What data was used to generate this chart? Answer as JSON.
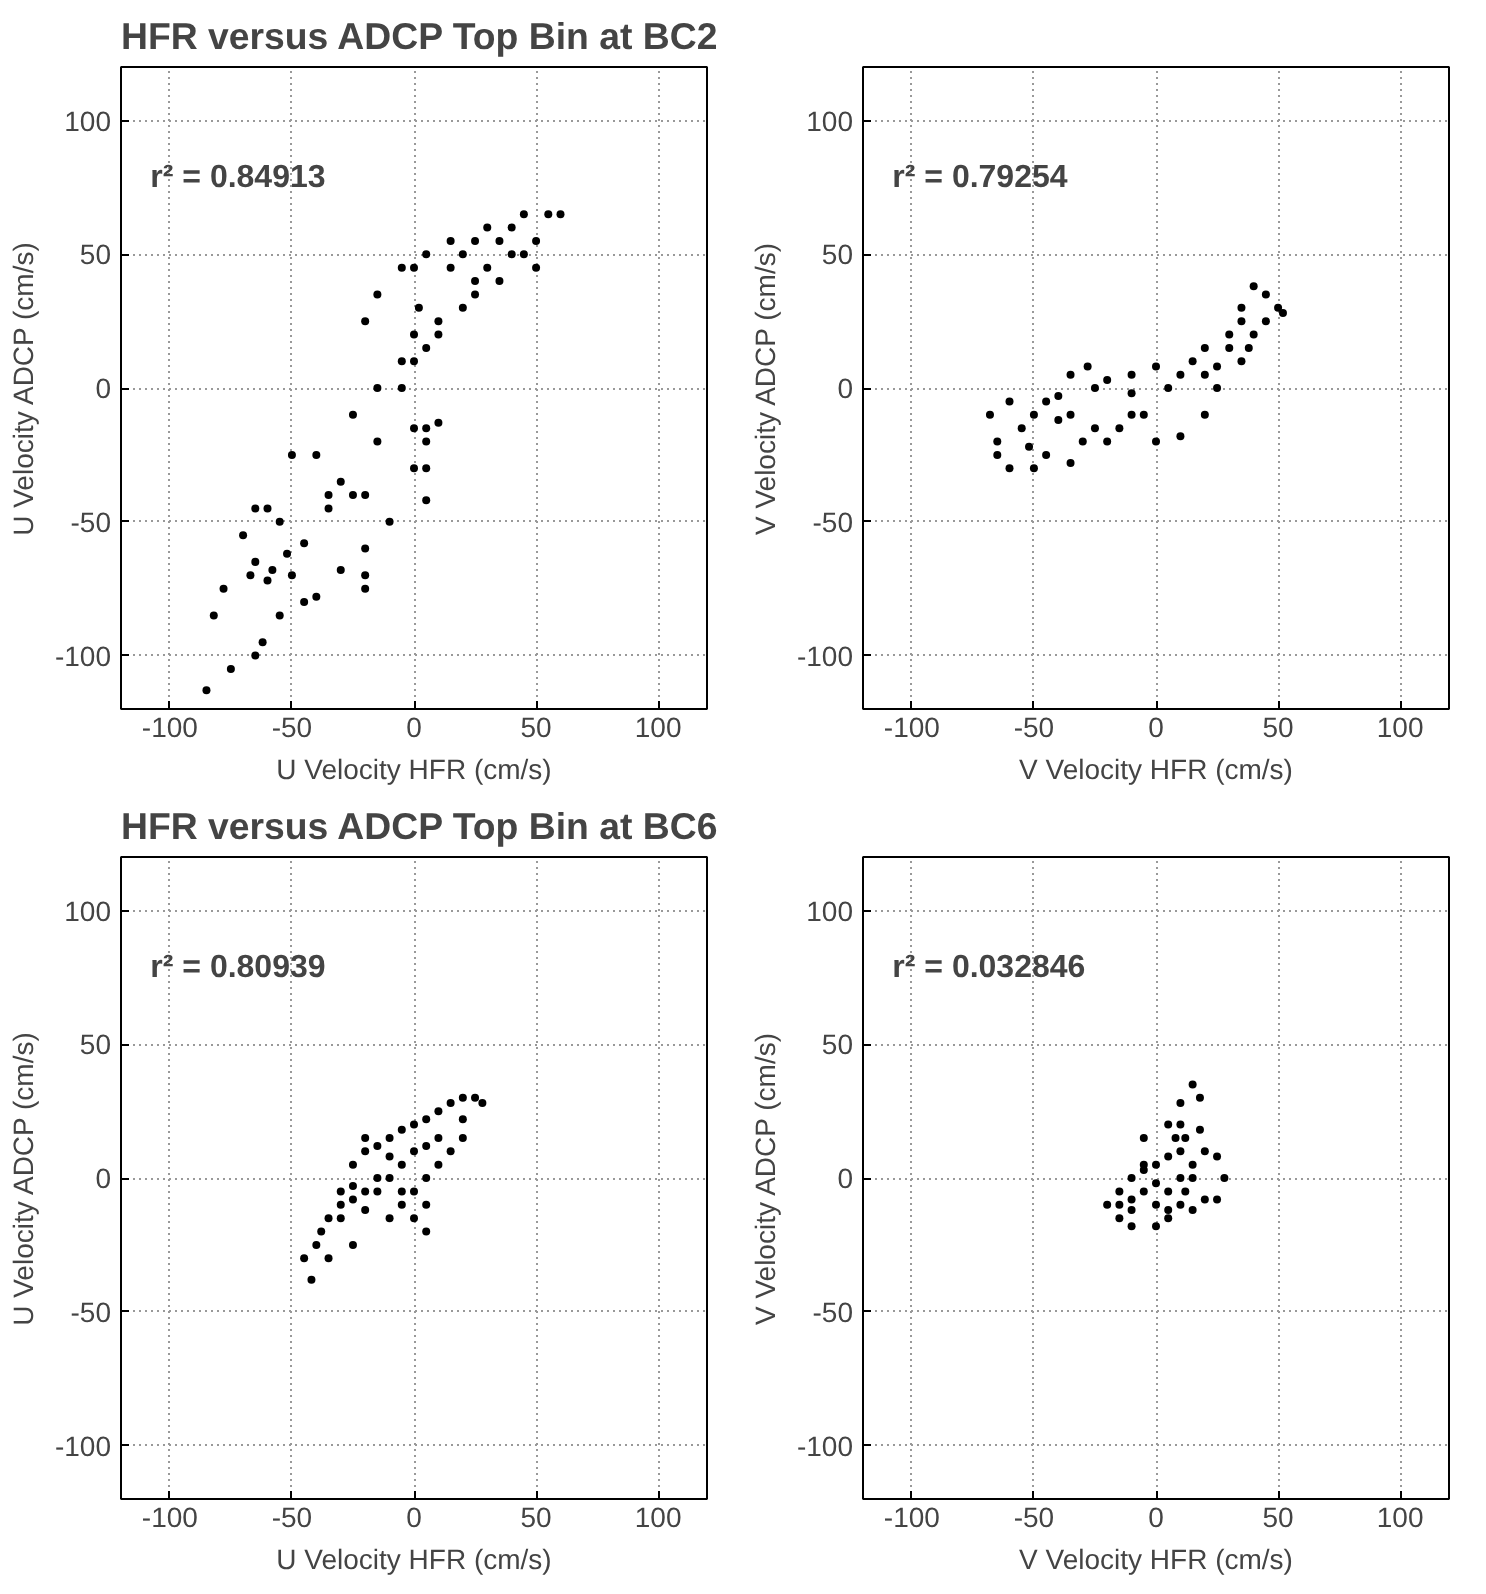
{
  "chart_data": [
    {
      "type": "scatter",
      "title": "HFR versus ADCP Top Bin at BC2",
      "xlabel": "U Velocity HFR (cm/s)",
      "ylabel": "U Velocity ADCP (cm/s)",
      "annotations": [
        "r² = 0.84913"
      ],
      "xlim": [
        -120,
        120
      ],
      "ylim": [
        -120,
        120
      ],
      "xticks": [
        -100,
        -50,
        0,
        50,
        100
      ],
      "yticks": [
        -100,
        -50,
        0,
        50,
        100
      ],
      "grid": true,
      "marker": "circle",
      "series": [
        {
          "color": "#000000",
          "x": [
            -85,
            -75,
            -65,
            -62,
            -55,
            -45,
            -40,
            -20,
            -20,
            -30,
            -50,
            -60,
            -67,
            -65,
            -58,
            -52,
            -45,
            -55,
            -60,
            -70,
            -78,
            -82,
            -65,
            -50,
            -40,
            -30,
            -35,
            -35,
            -20,
            0,
            5,
            5,
            5,
            0,
            5,
            10,
            -20,
            -10,
            -25,
            -15,
            -5,
            0,
            5,
            10,
            -25,
            -15,
            -5,
            0,
            2,
            0,
            -5,
            -15,
            -20,
            10,
            20,
            25,
            15,
            5,
            15,
            25,
            35,
            40,
            45,
            55,
            60,
            50,
            40,
            30,
            20,
            30,
            45,
            50,
            35,
            25
          ],
          "values": [
            -113,
            -105,
            -100,
            -95,
            -85,
            -80,
            -78,
            -75,
            -70,
            -68,
            -70,
            -72,
            -70,
            -65,
            -68,
            -62,
            -58,
            -50,
            -45,
            -55,
            -75,
            -85,
            -45,
            -25,
            -25,
            -35,
            -45,
            -40,
            -40,
            -30,
            -30,
            -42,
            -15,
            -15,
            -20,
            -13,
            -60,
            -50,
            -40,
            -20,
            0,
            10,
            15,
            20,
            -10,
            0,
            10,
            20,
            30,
            45,
            45,
            35,
            25,
            25,
            30,
            35,
            45,
            50,
            55,
            55,
            55,
            60,
            65,
            65,
            65,
            55,
            50,
            45,
            50,
            60,
            50,
            45,
            40,
            40
          ]
        }
      ]
    },
    {
      "type": "scatter",
      "xlabel": "V Velocity HFR (cm/s)",
      "ylabel": "V Velocity ADCP (cm/s)",
      "annotations": [
        "r² = 0.79254"
      ],
      "xlim": [
        -120,
        120
      ],
      "ylim": [
        -120,
        120
      ],
      "xticks": [
        -100,
        -50,
        0,
        50,
        100
      ],
      "yticks": [
        -100,
        -50,
        0,
        50,
        100
      ],
      "grid": true,
      "marker": "circle",
      "series": [
        {
          "color": "#000000",
          "x": [
            -65,
            -68,
            -60,
            -55,
            -65,
            -60,
            -52,
            -50,
            -45,
            -40,
            -45,
            -50,
            -35,
            -30,
            -35,
            -40,
            -35,
            -28,
            -25,
            -25,
            -20,
            -15,
            -10,
            -5,
            0,
            10,
            20,
            25,
            20,
            10,
            0,
            -10,
            -20,
            -10,
            5,
            15,
            20,
            30,
            35,
            40,
            45,
            50,
            52,
            45,
            40,
            35,
            30,
            25,
            35,
            38
          ],
          "values": [
            -20,
            -10,
            -5,
            -15,
            -25,
            -30,
            -22,
            -10,
            -5,
            -12,
            -25,
            -30,
            -28,
            -20,
            -10,
            -3,
            5,
            8,
            0,
            -15,
            -20,
            -15,
            -10,
            -10,
            -20,
            -18,
            -10,
            0,
            5,
            5,
            8,
            5,
            3,
            -2,
            0,
            10,
            15,
            20,
            25,
            38,
            35,
            30,
            28,
            25,
            20,
            10,
            15,
            8,
            30,
            15
          ]
        }
      ]
    },
    {
      "type": "scatter",
      "title": "HFR versus ADCP Top Bin at BC6",
      "xlabel": "U Velocity HFR (cm/s)",
      "ylabel": "U Velocity ADCP (cm/s)",
      "annotations": [
        "r² = 0.80939"
      ],
      "xlim": [
        -120,
        120
      ],
      "ylim": [
        -120,
        120
      ],
      "xticks": [
        -100,
        -50,
        0,
        50,
        100
      ],
      "yticks": [
        -100,
        -50,
        0,
        50,
        100
      ],
      "grid": true,
      "marker": "circle",
      "series": [
        {
          "color": "#000000",
          "x": [
            -42,
            -45,
            -40,
            -35,
            -30,
            -25,
            -20,
            -15,
            -10,
            -5,
            0,
            5,
            10,
            15,
            20,
            25,
            28,
            20,
            10,
            0,
            -5,
            -10,
            -15,
            -20,
            -25,
            -30,
            -35,
            -38,
            -30,
            -25,
            -20,
            -15,
            -10,
            -5,
            0,
            5,
            5,
            0,
            -5,
            5,
            10,
            15,
            20,
            -20,
            -10,
            5,
            -25
          ],
          "values": [
            -38,
            -30,
            -25,
            -15,
            -5,
            5,
            10,
            12,
            15,
            18,
            20,
            22,
            25,
            28,
            30,
            30,
            28,
            22,
            15,
            10,
            5,
            0,
            -5,
            -5,
            -8,
            -15,
            -30,
            -20,
            -10,
            -3,
            -12,
            0,
            -15,
            -10,
            -5,
            -10,
            -20,
            -15,
            -5,
            0,
            5,
            10,
            15,
            15,
            8,
            12,
            -25
          ]
        }
      ]
    },
    {
      "type": "scatter",
      "xlabel": "V Velocity HFR (cm/s)",
      "ylabel": "V Velocity ADCP (cm/s)",
      "annotations": [
        "r² = 0.032846"
      ],
      "xlim": [
        -120,
        120
      ],
      "ylim": [
        -120,
        120
      ],
      "xticks": [
        -100,
        -50,
        0,
        50,
        100
      ],
      "yticks": [
        -100,
        -50,
        0,
        50,
        100
      ],
      "grid": true,
      "marker": "circle",
      "series": [
        {
          "color": "#000000",
          "x": [
            -20,
            -15,
            -10,
            0,
            5,
            10,
            15,
            20,
            25,
            28,
            25,
            20,
            15,
            12,
            10,
            5,
            0,
            -5,
            -10,
            -15,
            -10,
            -5,
            0,
            5,
            8,
            10,
            10,
            15,
            18,
            12,
            5,
            -5,
            -5,
            0,
            -10,
            -15,
            5,
            15,
            18,
            10
          ],
          "values": [
            -10,
            -15,
            -18,
            -18,
            -12,
            -10,
            -12,
            -8,
            -8,
            0,
            8,
            10,
            5,
            -5,
            0,
            -5,
            -2,
            -5,
            -8,
            -5,
            0,
            3,
            5,
            8,
            15,
            20,
            28,
            35,
            30,
            15,
            20,
            15,
            5,
            -10,
            -12,
            -10,
            -15,
            0,
            18,
            10
          ]
        }
      ]
    }
  ]
}
